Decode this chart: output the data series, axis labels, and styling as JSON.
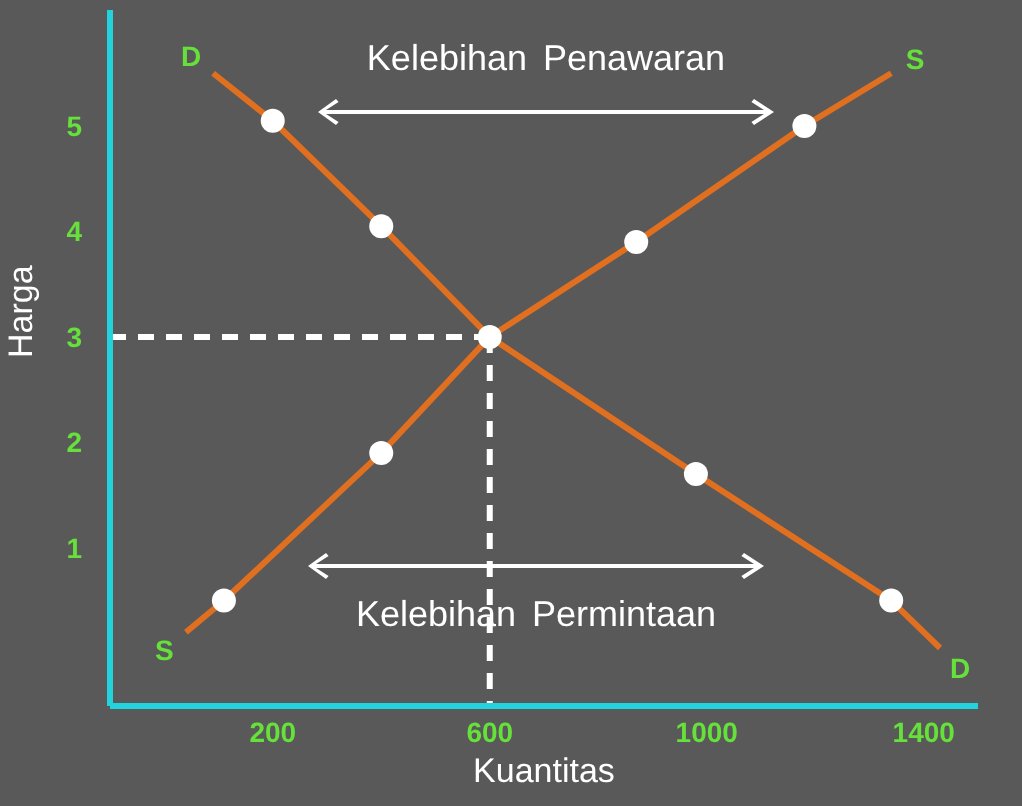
{
  "chart_data": {
    "type": "line",
    "xlabel": "Kuantitas",
    "ylabel": "Harga",
    "xlim": [
      -100,
      1500
    ],
    "xticks": [
      200,
      600,
      1000,
      1400
    ],
    "ylim": [
      -0.5,
      6.1
    ],
    "yticks": [
      1,
      2,
      3,
      4,
      5
    ],
    "grid": false,
    "legend": false,
    "line_style": "solid",
    "marker": "none",
    "series": [
      {
        "name": "D",
        "color": "#e07020",
        "x": [
          90,
          200,
          400,
          600,
          980,
          1340,
          1430
        ],
        "values": [
          5.5,
          5.05,
          4.05,
          3,
          1.7,
          0.5,
          0.05
        ]
      },
      {
        "name": "S",
        "color": "#e07020",
        "x": [
          40,
          110,
          400,
          600,
          870,
          1180,
          1340
        ],
        "values": [
          0.2,
          0.5,
          1.9,
          3,
          3.9,
          5,
          5.5
        ]
      },
      {
        "type": "scatter",
        "color": "#ffffff",
        "marker": "circle",
        "x": [
          200,
          400,
          600,
          980,
          1340
        ],
        "values": [
          5.05,
          4.05,
          3,
          1.7,
          0.5
        ]
      },
      {
        "type": "scatter",
        "color": "#ffffff",
        "marker": "circle",
        "x": [
          110,
          400,
          870,
          1180
        ],
        "values": [
          0.5,
          1.9,
          3.9,
          5
        ]
      },
      {
        "color": "#ffffff",
        "line_style": "dashed",
        "x": [
          -100,
          600
        ],
        "values": [
          3,
          3
        ]
      },
      {
        "color": "#ffffff",
        "line_style": "dashed",
        "x": [
          600,
          600
        ],
        "values": [
          3,
          -0.5
        ]
      }
    ],
    "annotations": [
      "Kelebihan Penawaran",
      "Kelebihan Permintaan"
    ]
  }
}
